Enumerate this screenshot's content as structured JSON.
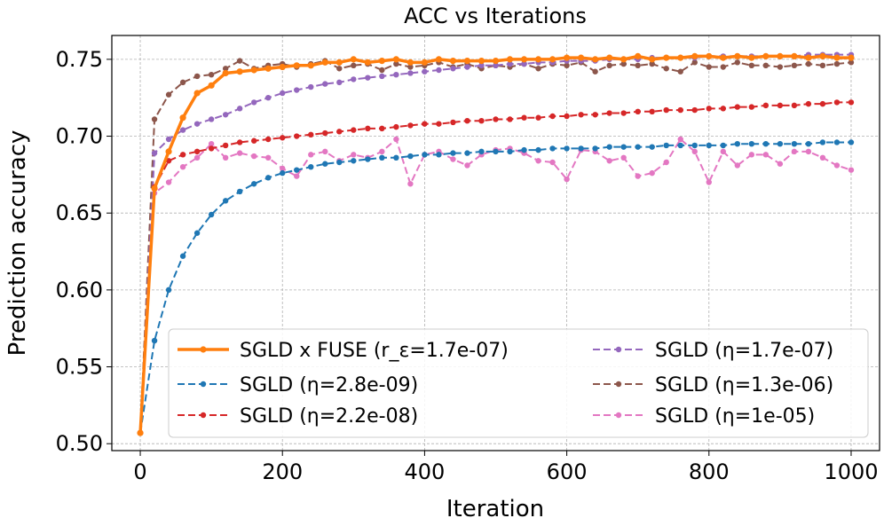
{
  "chart_data": {
    "type": "line",
    "title": "ACC vs Iterations",
    "xlabel": "Iteration",
    "ylabel": "Prediction accuracy",
    "xlim": [
      -40,
      1040
    ],
    "ylim": [
      0.4955,
      0.7655
    ],
    "xticks": [
      0,
      200,
      400,
      600,
      800,
      1000
    ],
    "xtick_labels": [
      "0",
      "200",
      "400",
      "600",
      "800",
      "1000"
    ],
    "yticks": [
      0.5,
      0.55,
      0.6,
      0.65,
      0.7,
      0.75
    ],
    "ytick_labels": [
      "0.50",
      "0.55",
      "0.60",
      "0.65",
      "0.70",
      "0.75"
    ],
    "grid": true,
    "legend_location": "lower-right",
    "legend_columns": 2,
    "x": [
      0,
      20,
      40,
      60,
      80,
      100,
      120,
      140,
      160,
      180,
      200,
      220,
      240,
      260,
      280,
      300,
      320,
      340,
      360,
      380,
      400,
      420,
      440,
      460,
      480,
      500,
      520,
      540,
      560,
      580,
      600,
      620,
      640,
      660,
      680,
      700,
      720,
      740,
      760,
      780,
      800,
      820,
      840,
      860,
      880,
      900,
      920,
      940,
      960,
      980,
      1000
    ],
    "series": [
      {
        "name": "SGLD x FUSE (r_ε=1.7e-07)",
        "color": "#ff7f0e",
        "linestyle": "solid",
        "values": [
          0.507,
          0.666,
          0.69,
          0.712,
          0.728,
          0.733,
          0.741,
          0.742,
          0.743,
          0.744,
          0.745,
          0.746,
          0.746,
          0.748,
          0.748,
          0.75,
          0.748,
          0.749,
          0.75,
          0.748,
          0.748,
          0.75,
          0.749,
          0.749,
          0.749,
          0.749,
          0.75,
          0.75,
          0.75,
          0.75,
          0.751,
          0.751,
          0.75,
          0.751,
          0.75,
          0.752,
          0.75,
          0.751,
          0.751,
          0.752,
          0.752,
          0.751,
          0.752,
          0.751,
          0.752,
          0.752,
          0.752,
          0.751,
          0.752,
          0.751,
          0.751
        ]
      },
      {
        "name": "SGLD (η=2.8e-09)",
        "color": "#1f77b4",
        "linestyle": "dashed",
        "values": [
          0.507,
          0.567,
          0.6,
          0.622,
          0.637,
          0.649,
          0.658,
          0.664,
          0.669,
          0.673,
          0.676,
          0.678,
          0.68,
          0.682,
          0.683,
          0.684,
          0.685,
          0.686,
          0.686,
          0.687,
          0.688,
          0.688,
          0.689,
          0.689,
          0.69,
          0.69,
          0.69,
          0.691,
          0.691,
          0.692,
          0.692,
          0.692,
          0.692,
          0.693,
          0.693,
          0.693,
          0.693,
          0.694,
          0.694,
          0.694,
          0.694,
          0.694,
          0.695,
          0.695,
          0.695,
          0.695,
          0.695,
          0.695,
          0.696,
          0.696,
          0.696
        ]
      },
      {
        "name": "SGLD (η=2.2e-08)",
        "color": "#d62728",
        "linestyle": "dashed",
        "values": [
          0.507,
          0.667,
          0.684,
          0.688,
          0.69,
          0.692,
          0.694,
          0.696,
          0.697,
          0.698,
          0.699,
          0.7,
          0.701,
          0.702,
          0.703,
          0.704,
          0.705,
          0.705,
          0.706,
          0.707,
          0.708,
          0.708,
          0.709,
          0.71,
          0.71,
          0.711,
          0.711,
          0.712,
          0.712,
          0.713,
          0.713,
          0.714,
          0.714,
          0.715,
          0.715,
          0.716,
          0.716,
          0.717,
          0.717,
          0.717,
          0.718,
          0.718,
          0.719,
          0.719,
          0.72,
          0.72,
          0.72,
          0.721,
          0.721,
          0.722,
          0.722
        ]
      },
      {
        "name": "SGLD (η=1.7e-07)",
        "color": "#9467bd",
        "linestyle": "dashed",
        "values": [
          0.507,
          0.689,
          0.698,
          0.704,
          0.708,
          0.711,
          0.714,
          0.718,
          0.722,
          0.725,
          0.728,
          0.73,
          0.732,
          0.734,
          0.735,
          0.737,
          0.738,
          0.739,
          0.74,
          0.741,
          0.742,
          0.743,
          0.744,
          0.745,
          0.746,
          0.746,
          0.747,
          0.747,
          0.748,
          0.748,
          0.749,
          0.749,
          0.749,
          0.75,
          0.75,
          0.75,
          0.751,
          0.751,
          0.751,
          0.751,
          0.752,
          0.752,
          0.752,
          0.752,
          0.752,
          0.752,
          0.752,
          0.753,
          0.753,
          0.753,
          0.753
        ]
      },
      {
        "name": "SGLD (η=1.3e-06)",
        "color": "#8c564b",
        "linestyle": "dashed",
        "values": [
          0.507,
          0.711,
          0.727,
          0.735,
          0.739,
          0.74,
          0.744,
          0.749,
          0.744,
          0.746,
          0.747,
          0.745,
          0.747,
          0.749,
          0.744,
          0.746,
          0.747,
          0.743,
          0.747,
          0.745,
          0.746,
          0.748,
          0.745,
          0.747,
          0.744,
          0.746,
          0.745,
          0.747,
          0.744,
          0.747,
          0.746,
          0.748,
          0.742,
          0.746,
          0.747,
          0.746,
          0.747,
          0.744,
          0.742,
          0.748,
          0.745,
          0.745,
          0.748,
          0.746,
          0.746,
          0.745,
          0.746,
          0.747,
          0.746,
          0.747,
          0.748
        ]
      },
      {
        "name": "SGLD (η=1e-05)",
        "color": "#e377c2",
        "linestyle": "dashed",
        "values": [
          0.507,
          0.663,
          0.67,
          0.68,
          0.686,
          0.695,
          0.686,
          0.689,
          0.687,
          0.686,
          0.679,
          0.674,
          0.688,
          0.69,
          0.684,
          0.688,
          0.686,
          0.69,
          0.698,
          0.669,
          0.688,
          0.69,
          0.685,
          0.681,
          0.688,
          0.691,
          0.692,
          0.689,
          0.684,
          0.683,
          0.672,
          0.691,
          0.69,
          0.684,
          0.686,
          0.674,
          0.676,
          0.683,
          0.698,
          0.69,
          0.67,
          0.69,
          0.681,
          0.688,
          0.688,
          0.682,
          0.69,
          0.69,
          0.686,
          0.681,
          0.678
        ]
      }
    ]
  }
}
